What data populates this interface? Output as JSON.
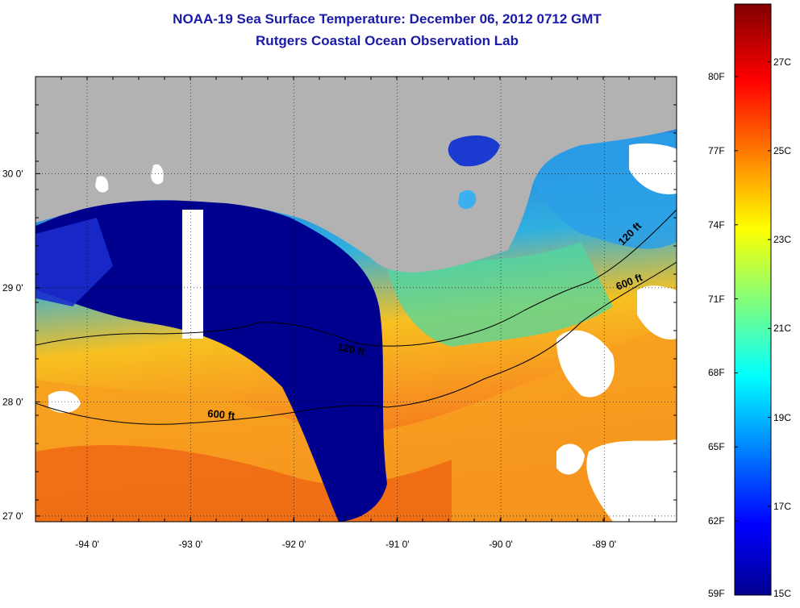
{
  "title": {
    "line1": "NOAA-19 Sea Surface Temperature:  December 06, 2012 0712 GMT",
    "line2": "Rutgers Coastal Ocean Observation Lab"
  },
  "map": {
    "lon_range": [
      -94.5,
      -88.3
    ],
    "lat_range": [
      26.95,
      30.85
    ],
    "lon_ticks": [
      {
        "value": -94,
        "label": "-94 0'"
      },
      {
        "value": -93,
        "label": "-93 0'"
      },
      {
        "value": -92,
        "label": "-92 0'"
      },
      {
        "value": -91,
        "label": "-91 0'"
      },
      {
        "value": -90,
        "label": "-90 0'"
      },
      {
        "value": -89,
        "label": "-89 0'"
      }
    ],
    "lat_ticks": [
      {
        "value": 30,
        "label": "30 0'"
      },
      {
        "value": 29,
        "label": "29 0'"
      },
      {
        "value": 28,
        "label": "28 0'"
      },
      {
        "value": 27,
        "label": "27 0'"
      }
    ],
    "contours": [
      {
        "label": "120 ft",
        "depth_ft": 120
      },
      {
        "label": "600 ft",
        "depth_ft": 600
      },
      {
        "label": "600 ft",
        "depth_ft": 600
      },
      {
        "label": "120 ft",
        "depth_ft": 120
      }
    ],
    "colors": {
      "land": "#b2b2b2",
      "no_data": "#ffffff",
      "cold": "#00008f",
      "warm": "#f05a14"
    }
  },
  "colorbar": {
    "range_c": [
      15,
      28.3
    ],
    "fahrenheit_labels": [
      {
        "value": 59,
        "label": "59F"
      },
      {
        "value": 62,
        "label": "62F"
      },
      {
        "value": 65,
        "label": "65F"
      },
      {
        "value": 68,
        "label": "68F"
      },
      {
        "value": 71,
        "label": "71F"
      },
      {
        "value": 74,
        "label": "74F"
      },
      {
        "value": 77,
        "label": "77F"
      },
      {
        "value": 80,
        "label": "80F"
      }
    ],
    "celsius_labels": [
      {
        "value": 15,
        "label": "15C"
      },
      {
        "value": 17,
        "label": "17C"
      },
      {
        "value": 19,
        "label": "19C"
      },
      {
        "value": 21,
        "label": "21C"
      },
      {
        "value": 23,
        "label": "23C"
      },
      {
        "value": 25,
        "label": "25C"
      },
      {
        "value": 27,
        "label": "27C"
      }
    ]
  }
}
